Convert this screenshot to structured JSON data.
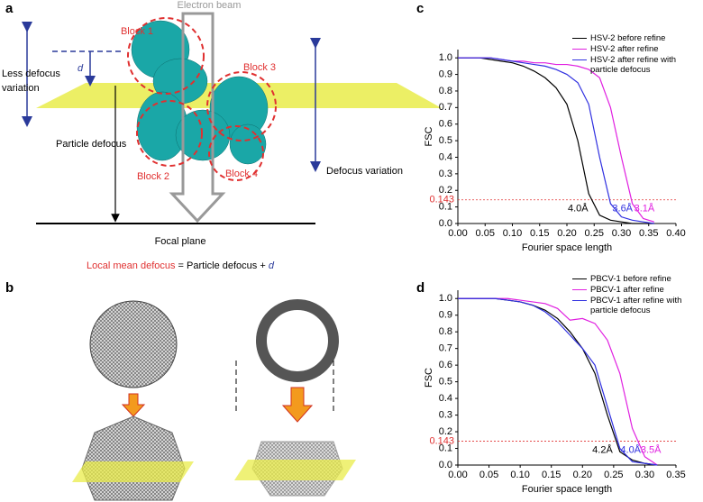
{
  "panel_labels": [
    "a",
    "b",
    "c",
    "d"
  ],
  "diagram_a": {
    "beam": "Electron beam",
    "blocks": [
      "Block 1",
      "Block 2",
      "Block 3",
      "Block 4"
    ],
    "less_defocus_variation": [
      "Less defocus",
      "variation"
    ],
    "d": "d",
    "particle_defocus": "Particle defocus",
    "defocus_variation": "Defocus variation",
    "focal_plane": "Focal plane",
    "equation": [
      "Local mean defocus",
      "= Particle defocus +",
      "d"
    ]
  },
  "chart_data": [
    {
      "type": "line",
      "x_label": "Fourier space length",
      "y_label": "FSC",
      "x": [
        0,
        0.02,
        0.04,
        0.06,
        0.08,
        0.1,
        0.12,
        0.14,
        0.16,
        0.18,
        0.2,
        0.22,
        0.24,
        0.26,
        0.28,
        0.3,
        0.32,
        0.34,
        0.36
      ],
      "series": [
        {
          "name": "HSV-2 before refine",
          "color": "#000000",
          "values": [
            1,
            1,
            1,
            0.99,
            0.98,
            0.97,
            0.95,
            0.92,
            0.88,
            0.82,
            0.72,
            0.5,
            0.18,
            0.05,
            0.02,
            0.01,
            0,
            0,
            0
          ]
        },
        {
          "name": "HSV-2 after refine",
          "color": "#e020e0",
          "values": [
            1,
            1,
            1,
            1,
            0.99,
            0.98,
            0.98,
            0.97,
            0.97,
            0.96,
            0.96,
            0.95,
            0.93,
            0.88,
            0.7,
            0.4,
            0.12,
            0.03,
            0.01
          ]
        },
        {
          "name": "HSV-2 after refine with particle defocus",
          "color": "#3030e0",
          "values": [
            1,
            1,
            1,
            1,
            0.99,
            0.98,
            0.97,
            0.96,
            0.95,
            0.93,
            0.9,
            0.85,
            0.72,
            0.4,
            0.12,
            0.04,
            0.02,
            0.01,
            0
          ]
        }
      ],
      "annotations": [
        "4.0Å",
        "3.1Å",
        "3.6Å"
      ],
      "threshold": 0.143,
      "xlim": [
        0,
        0.4
      ],
      "ylim": [
        0,
        1.05
      ],
      "xticks": [
        {
          "value": 0,
          "label": "0.00"
        },
        {
          "value": 0.05,
          "label": "0.05"
        },
        {
          "value": 0.1,
          "label": "0.10"
        },
        {
          "value": 0.15,
          "label": "0.15"
        },
        {
          "value": 0.2,
          "label": "0.20"
        },
        {
          "value": 0.25,
          "label": "0.25"
        },
        {
          "value": 0.3,
          "label": "0.30"
        },
        {
          "value": 0.35,
          "label": "0.35"
        },
        {
          "value": 0.4,
          "label": "0.40"
        }
      ],
      "yticks": [
        {
          "value": 0,
          "label": "0.0"
        },
        0.1,
        0.2,
        0.3,
        0.4,
        0.5,
        0.6,
        0.7,
        0.8,
        0.9,
        {
          "value": 1,
          "label": "1.0"
        }
      ]
    },
    {
      "type": "line",
      "x_label": "Fourier space length",
      "y_label": "FSC",
      "x": [
        0,
        0.02,
        0.04,
        0.06,
        0.08,
        0.1,
        0.12,
        0.14,
        0.16,
        0.18,
        0.2,
        0.22,
        0.24,
        0.26,
        0.28,
        0.3,
        0.32
      ],
      "series": [
        {
          "name": "PBCV-1 before refine",
          "color": "#000000",
          "values": [
            1,
            1,
            1,
            1,
            0.99,
            0.98,
            0.96,
            0.93,
            0.88,
            0.8,
            0.7,
            0.55,
            0.3,
            0.08,
            0.03,
            0.01,
            0
          ]
        },
        {
          "name": "PBCV-1 after refine",
          "color": "#e020e0",
          "values": [
            1,
            1,
            1,
            1,
            1,
            0.99,
            0.98,
            0.97,
            0.94,
            0.87,
            0.88,
            0.85,
            0.75,
            0.55,
            0.22,
            0.05,
            0
          ]
        },
        {
          "name": "PBCV-1 after refine with particle defocus",
          "color": "#3030e0",
          "values": [
            1,
            1,
            1,
            1,
            0.99,
            0.98,
            0.96,
            0.92,
            0.86,
            0.78,
            0.7,
            0.6,
            0.35,
            0.1,
            0.02,
            0.01,
            0
          ]
        }
      ],
      "annotations": [
        "4.2Å",
        "3.5Å",
        "4.0Å"
      ],
      "threshold": 0.143,
      "xlim": [
        0,
        0.35
      ],
      "ylim": [
        0,
        1.05
      ],
      "xticks": [
        {
          "value": 0,
          "label": "0.00"
        },
        {
          "value": 0.05,
          "label": "0.05"
        },
        {
          "value": 0.1,
          "label": "0.10"
        },
        {
          "value": 0.15,
          "label": "0.15"
        },
        {
          "value": 0.2,
          "label": "0.20"
        },
        {
          "value": 0.25,
          "label": "0.25"
        },
        {
          "value": 0.3,
          "label": "0.30"
        },
        {
          "value": 0.35,
          "label": "0.35"
        }
      ],
      "yticks": [
        {
          "value": 0,
          "label": "0.0"
        },
        0.1,
        0.2,
        0.3,
        0.4,
        0.5,
        0.6,
        0.7,
        0.8,
        0.9,
        {
          "value": 1,
          "label": "1.0"
        }
      ]
    }
  ]
}
